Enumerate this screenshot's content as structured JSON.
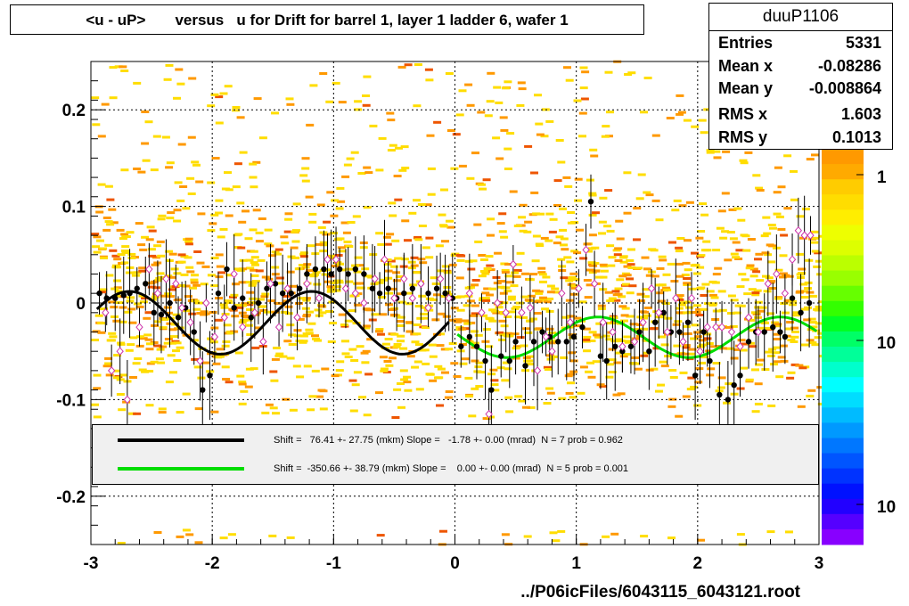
{
  "title": "<u - uP>       versus   u for Drift for barrel 1, layer 1 ladder 6, wafer 1",
  "stats": {
    "name": "duuP1106",
    "rows": [
      {
        "label": "Entries",
        "value": "5331"
      },
      {
        "label": "Mean x",
        "value": "-0.08286"
      },
      {
        "label": "Mean y",
        "value": "-0.008864"
      },
      {
        "label": "RMS x",
        "value": "1.603"
      },
      {
        "label": "RMS y",
        "value": "0.1013"
      }
    ]
  },
  "fits": [
    {
      "color": "#000000",
      "text": "Shift =   76.41 +- 27.75 (mkm) Slope =   -1.78 +- 0.00 (mrad)  N = 7 prob = 0.962"
    },
    {
      "color": "#00dd00",
      "text": "Shift =  -350.66 +- 38.79 (mkm) Slope =    0.00 +- 0.00 (mrad)  N = 5 prob = 0.001"
    }
  ],
  "xaxis_title": "../P06icFiles/6043115_6043121.root",
  "palette_labels": [
    "1",
    "10",
    "10"
  ],
  "colors": {
    "hist_orange": "#ff9900",
    "hist_yellow": "#ffdd00",
    "hist_red": "#ee5500",
    "points_black": "#000000",
    "points_open": "#cc33aa",
    "fit_black": "#000000",
    "fit_green": "#00dd00"
  },
  "chart_data": {
    "type": "scatter",
    "xlim": [
      -3,
      3
    ],
    "ylim": [
      -0.25,
      0.25
    ],
    "xticks": [
      -3,
      -2,
      -1,
      0,
      1,
      2,
      3
    ],
    "xtick_labels": [
      "-3",
      "-2",
      "-1",
      "0",
      "1",
      "2",
      "3"
    ],
    "yticks": [
      -0.2,
      -0.1,
      0,
      0.1,
      0.2
    ],
    "ytick_labels": [
      "-0.2",
      "-0.1",
      "0",
      "0.1",
      "0.2"
    ],
    "grid": true,
    "series": [
      {
        "marker": "filled-circle",
        "points": [
          [
            -2.93,
            0.01
          ],
          [
            -2.87,
            0.005
          ],
          [
            -2.8,
            0.005
          ],
          [
            -2.73,
            0.008
          ],
          [
            -2.68,
            0.01
          ],
          [
            -2.62,
            0.015
          ],
          [
            -2.55,
            0.02
          ],
          [
            -2.48,
            -0.01
          ],
          [
            -2.42,
            -0.012
          ],
          [
            -2.35,
            0.0
          ],
          [
            -2.28,
            -0.015
          ],
          [
            -2.22,
            -0.005
          ],
          [
            -2.15,
            -0.03
          ],
          [
            -2.08,
            -0.09
          ],
          [
            -2.02,
            -0.075
          ],
          [
            -1.95,
            0.01
          ],
          [
            -1.88,
            0.035
          ],
          [
            -1.82,
            -0.005
          ],
          [
            -1.75,
            0.005
          ],
          [
            -1.68,
            -0.015
          ],
          [
            -1.62,
            0.0
          ],
          [
            -1.55,
            0.015
          ],
          [
            -1.48,
            0.02
          ],
          [
            -1.42,
            0.01
          ],
          [
            -1.35,
            0.01
          ],
          [
            -1.28,
            0.015
          ],
          [
            -1.22,
            0.03
          ],
          [
            -1.15,
            0.035
          ],
          [
            -1.08,
            0.035
          ],
          [
            -1.02,
            0.03
          ],
          [
            -0.95,
            0.035
          ],
          [
            -0.88,
            0.03
          ],
          [
            -0.82,
            0.035
          ],
          [
            -0.75,
            0.03
          ],
          [
            -0.68,
            0.015
          ],
          [
            -0.62,
            0.01
          ],
          [
            -0.55,
            0.015
          ],
          [
            -0.48,
            0.005
          ],
          [
            -0.42,
            0.01
          ],
          [
            -0.35,
            0.015
          ],
          [
            -0.28,
            0.02
          ],
          [
            -0.22,
            0.01
          ],
          [
            -0.15,
            0.015
          ],
          [
            -0.08,
            0.01
          ],
          [
            -0.02,
            0.005
          ],
          [
            0.05,
            -0.045
          ],
          [
            0.12,
            -0.035
          ],
          [
            0.18,
            -0.045
          ],
          [
            0.25,
            -0.06
          ],
          [
            0.3,
            -0.09
          ],
          [
            0.38,
            -0.055
          ],
          [
            0.45,
            -0.06
          ],
          [
            0.5,
            -0.04
          ],
          [
            0.58,
            -0.065
          ],
          [
            0.65,
            -0.04
          ],
          [
            0.72,
            -0.03
          ],
          [
            0.78,
            -0.035
          ],
          [
            0.85,
            -0.04
          ],
          [
            0.92,
            -0.04
          ],
          [
            0.98,
            -0.035
          ],
          [
            1.05,
            -0.025
          ],
          [
            1.12,
            0.105
          ],
          [
            1.2,
            -0.055
          ],
          [
            1.25,
            -0.06
          ],
          [
            1.32,
            -0.045
          ],
          [
            1.38,
            -0.05
          ],
          [
            1.45,
            -0.045
          ],
          [
            1.52,
            -0.03
          ],
          [
            1.6,
            -0.05
          ],
          [
            1.65,
            -0.02
          ],
          [
            1.72,
            -0.01
          ],
          [
            1.78,
            -0.03
          ],
          [
            1.85,
            -0.03
          ],
          [
            1.92,
            -0.02
          ],
          [
            1.98,
            -0.075
          ],
          [
            2.05,
            -0.03
          ],
          [
            2.1,
            -0.06
          ],
          [
            2.18,
            -0.095
          ],
          [
            2.25,
            -0.1
          ],
          [
            2.3,
            -0.085
          ],
          [
            2.35,
            -0.075
          ],
          [
            2.42,
            -0.04
          ],
          [
            2.48,
            -0.03
          ],
          [
            2.55,
            -0.03
          ],
          [
            2.62,
            -0.025
          ],
          [
            2.68,
            -0.03
          ],
          [
            2.72,
            -0.035
          ],
          [
            2.78,
            0.005
          ],
          [
            2.85,
            -0.01
          ],
          [
            2.92,
            0.0
          ]
        ]
      },
      {
        "marker": "open-diamond",
        "points": [
          [
            -2.88,
            -0.01
          ],
          [
            -2.83,
            -0.07
          ],
          [
            -2.76,
            -0.05
          ],
          [
            -2.7,
            -0.1
          ],
          [
            -2.6,
            -0.025
          ],
          [
            -2.52,
            0.035
          ],
          [
            -2.45,
            0.01
          ],
          [
            -2.38,
            0.025
          ],
          [
            -2.3,
            0.02
          ],
          [
            -2.25,
            -0.005
          ],
          [
            -2.18,
            -0.02
          ],
          [
            -2.1,
            -0.06
          ],
          [
            -2.05,
            0.0
          ],
          [
            -1.98,
            -0.035
          ],
          [
            -1.9,
            -0.015
          ],
          [
            -1.82,
            0.03
          ],
          [
            -1.75,
            -0.025
          ],
          [
            -1.65,
            -0.01
          ],
          [
            -1.58,
            -0.04
          ],
          [
            -1.52,
            0.02
          ],
          [
            -1.45,
            -0.025
          ],
          [
            -1.38,
            0.015
          ],
          [
            -1.3,
            -0.015
          ],
          [
            -1.22,
            0.02
          ],
          [
            -1.12,
            0.005
          ],
          [
            -1.05,
            0.045
          ],
          [
            -0.98,
            0.045
          ],
          [
            -0.9,
            0.015
          ],
          [
            -0.82,
            0.01
          ],
          [
            -0.75,
            0.0
          ],
          [
            -0.66,
            0.025
          ],
          [
            -0.58,
            0.045
          ],
          [
            -0.5,
            0.005
          ],
          [
            -0.42,
            0.025
          ],
          [
            -0.35,
            0.005
          ],
          [
            -0.28,
            0.02
          ],
          [
            -0.22,
            -0.005
          ],
          [
            -0.12,
            0.025
          ],
          [
            -0.05,
            0.005
          ],
          [
            0.12,
            0.01
          ],
          [
            0.22,
            -0.01
          ],
          [
            0.28,
            -0.115
          ],
          [
            0.35,
            0.0
          ],
          [
            0.42,
            -0.01
          ],
          [
            0.48,
            0.04
          ],
          [
            0.55,
            -0.01
          ],
          [
            0.62,
            -0.005
          ],
          [
            0.68,
            -0.07
          ],
          [
            0.75,
            -0.035
          ],
          [
            0.8,
            -0.05
          ],
          [
            0.88,
            0.01
          ],
          [
            0.95,
            -0.02
          ],
          [
            1.02,
            0.015
          ],
          [
            1.08,
            0.055
          ],
          [
            1.15,
            0.02
          ],
          [
            1.22,
            -0.02
          ],
          [
            1.3,
            -0.03
          ],
          [
            1.38,
            -0.045
          ],
          [
            1.48,
            -0.04
          ],
          [
            1.55,
            -0.02
          ],
          [
            1.62,
            0.015
          ],
          [
            1.68,
            -0.01
          ],
          [
            1.75,
            -0.03
          ],
          [
            1.82,
            0.005
          ],
          [
            1.88,
            -0.04
          ],
          [
            1.95,
            0.005
          ],
          [
            2.02,
            -0.05
          ],
          [
            2.08,
            -0.025
          ],
          [
            2.15,
            -0.025
          ],
          [
            2.2,
            -0.025
          ],
          [
            2.28,
            -0.03
          ],
          [
            2.35,
            -0.045
          ],
          [
            2.42,
            -0.015
          ],
          [
            2.5,
            -0.03
          ],
          [
            2.58,
            0.02
          ],
          [
            2.65,
            0.03
          ],
          [
            2.72,
            0.01
          ],
          [
            2.78,
            0.045
          ],
          [
            2.83,
            0.075
          ],
          [
            2.88,
            0.07
          ],
          [
            2.93,
            0.07
          ]
        ]
      },
      {
        "name": "fit-black",
        "type": "line",
        "x_range": [
          -2.95,
          -0.05
        ],
        "model": "-0.0205 + 0.0325*sin(2*pi*(x+2.95)/1.5 + 0.45)"
      },
      {
        "name": "fit-green",
        "type": "line",
        "x_range": [
          0.02,
          2.98
        ],
        "model": "-0.0355 + 0.021*sin(2*pi*(x-0.02)/1.5 + 3.0)"
      }
    ]
  }
}
